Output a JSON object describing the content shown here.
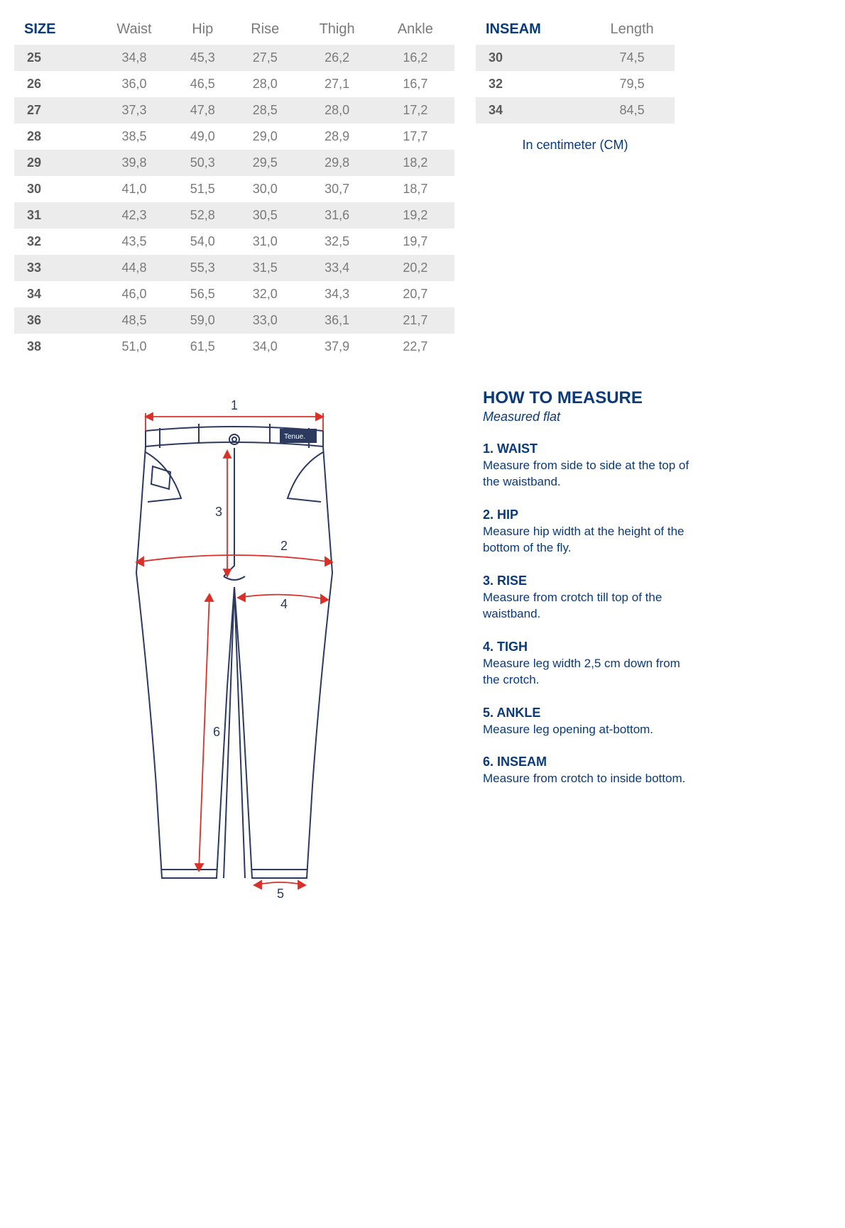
{
  "colors": {
    "primary": "#0a3a7a",
    "muted": "#7a7a7a",
    "row_alt": "#ececec",
    "bg": "#ffffff",
    "arrow": "#d9302a",
    "outline": "#2b3a5e"
  },
  "size_table": {
    "headers": [
      "SIZE",
      "Waist",
      "Hip",
      "Rise",
      "Thigh",
      "Ankle"
    ],
    "rows": [
      [
        "25",
        "34,8",
        "45,3",
        "27,5",
        "26,2",
        "16,2"
      ],
      [
        "26",
        "36,0",
        "46,5",
        "28,0",
        "27,1",
        "16,7"
      ],
      [
        "27",
        "37,3",
        "47,8",
        "28,5",
        "28,0",
        "17,2"
      ],
      [
        "28",
        "38,5",
        "49,0",
        "29,0",
        "28,9",
        "17,7"
      ],
      [
        "29",
        "39,8",
        "50,3",
        "29,5",
        "29,8",
        "18,2"
      ],
      [
        "30",
        "41,0",
        "51,5",
        "30,0",
        "30,7",
        "18,7"
      ],
      [
        "31",
        "42,3",
        "52,8",
        "30,5",
        "31,6",
        "19,2"
      ],
      [
        "32",
        "43,5",
        "54,0",
        "31,0",
        "32,5",
        "19,7"
      ],
      [
        "33",
        "44,8",
        "55,3",
        "31,5",
        "33,4",
        "20,2"
      ],
      [
        "34",
        "46,0",
        "56,5",
        "32,0",
        "34,3",
        "20,7"
      ],
      [
        "36",
        "48,5",
        "59,0",
        "33,0",
        "36,1",
        "21,7"
      ],
      [
        "38",
        "51,0",
        "61,5",
        "34,0",
        "37,9",
        "22,7"
      ]
    ]
  },
  "inseam_table": {
    "headers": [
      "INSEAM",
      "Length"
    ],
    "rows": [
      [
        "30",
        "74,5"
      ],
      [
        "32",
        "79,5"
      ],
      [
        "34",
        "84,5"
      ]
    ]
  },
  "unit_note": "In centimeter (CM)",
  "howto": {
    "title": "HOW TO MEASURE",
    "subtitle": "Measured flat",
    "items": [
      {
        "label": "1. WAIST",
        "desc": "Measure from side to side at the top of the waistband."
      },
      {
        "label": "2. HIP",
        "desc": "Measure hip width at the height of the bottom of the fly."
      },
      {
        "label": "3. RISE",
        "desc": "Measure from crotch till top of the waistband."
      },
      {
        "label": "4. TIGH",
        "desc": "Measure leg width 2,5 cm down from the crotch."
      },
      {
        "label": "5. ANKLE",
        "desc": "Measure leg opening at-bottom."
      },
      {
        "label": "6. INSEAM",
        "desc": "Measure from crotch to inside bottom."
      }
    ]
  },
  "diagram": {
    "brand_label": "Tenue.",
    "numbers": [
      "1",
      "2",
      "3",
      "4",
      "5",
      "6"
    ]
  }
}
